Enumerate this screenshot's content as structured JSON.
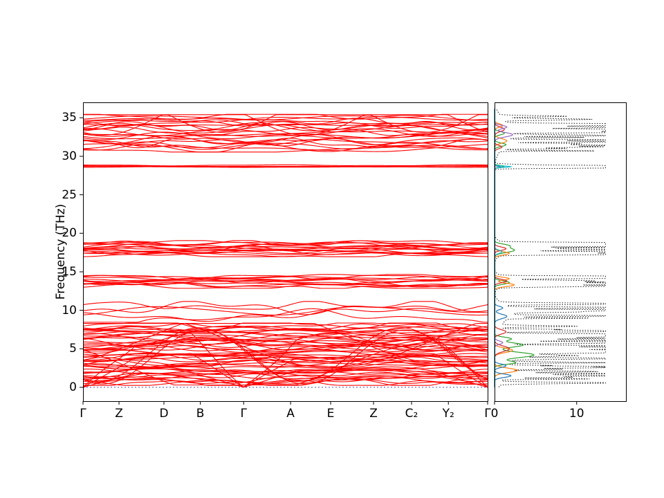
{
  "chart_data": {
    "type": "line",
    "title": "",
    "band_panel": {
      "ylabel": "Frequency (THz)",
      "yticks": [
        0,
        5,
        10,
        15,
        20,
        25,
        30,
        35
      ],
      "ylim": [
        -1.8,
        37.0
      ],
      "xticklabels": [
        "Γ",
        "Z",
        "D",
        "B",
        "Γ",
        "A",
        "E",
        "Z",
        "C₂",
        "Y₂",
        "Γ"
      ],
      "xtickpos": [
        0,
        0.089,
        0.2,
        0.29,
        0.397,
        0.513,
        0.612,
        0.718,
        0.812,
        0.903,
        1.0
      ],
      "band_color": "#ff0000",
      "zero_line_color": "#3333bb",
      "gamma_xpos": [
        0,
        0.397,
        1.0
      ],
      "band_regions": [
        {
          "fmin": 0.4,
          "fmax": 8.2,
          "count": 52,
          "wiggle": 0.5,
          "acoustic": 3,
          "crossing": 5
        },
        {
          "fmin": 8.6,
          "fmax": 11.0,
          "count": 5,
          "wiggle": 0.8,
          "acoustic": 0,
          "crossing": 0
        },
        {
          "fmin": 13.0,
          "fmax": 14.5,
          "count": 12,
          "wiggle": 0.3,
          "acoustic": 0,
          "crossing": 0
        },
        {
          "fmin": 17.1,
          "fmax": 18.9,
          "count": 16,
          "wiggle": 0.35,
          "acoustic": 0,
          "crossing": 0
        },
        {
          "fmin": 28.5,
          "fmax": 28.9,
          "count": 4,
          "wiggle": 0.07,
          "acoustic": 0,
          "crossing": 0
        },
        {
          "fmin": 30.7,
          "fmax": 35.3,
          "count": 24,
          "wiggle": 0.5,
          "acoustic": 0,
          "crossing": 2
        }
      ]
    },
    "dos_panel": {
      "xticks": [
        0,
        10
      ],
      "xlim": [
        0,
        16
      ],
      "total_color": "#000000",
      "total_style": "dotted",
      "total_max": 13.5,
      "partials": [
        {
          "color": "#2ca02c",
          "peaks": [
            [
              4.2,
              4.8,
              0.5
            ],
            [
              5.5,
              3.5,
              0.4
            ],
            [
              3.2,
              2.5,
              0.3
            ],
            [
              6.3,
              2.0,
              0.3
            ],
            [
              13.6,
              1.8,
              0.3
            ],
            [
              17.8,
              2.4,
              0.4
            ],
            [
              18.4,
              1.6,
              0.3
            ],
            [
              28.7,
              1.2,
              0.15
            ],
            [
              31.5,
              1.4,
              0.3
            ],
            [
              33.0,
              1.2,
              0.3
            ]
          ]
        },
        {
          "color": "#ff7f0e",
          "peaks": [
            [
              2.2,
              2.8,
              0.4
            ],
            [
              4.8,
              2.2,
              0.4
            ],
            [
              13.3,
              2.4,
              0.3
            ],
            [
              14.1,
              1.8,
              0.25
            ],
            [
              17.4,
              1.8,
              0.3
            ],
            [
              32.0,
              1.5,
              0.4
            ],
            [
              34.0,
              1.0,
              0.3
            ]
          ]
        },
        {
          "color": "#1f77b4",
          "peaks": [
            [
              1.5,
              2.0,
              0.3
            ],
            [
              2.8,
              1.4,
              0.3
            ],
            [
              9.2,
              1.5,
              0.4
            ],
            [
              10.3,
              1.0,
              0.3
            ],
            [
              28.6,
              0.8,
              0.12
            ]
          ]
        },
        {
          "color": "#d62728",
          "peaks": [
            [
              5.0,
              1.8,
              0.5
            ],
            [
              7.2,
              1.4,
              0.4
            ],
            [
              13.8,
              1.5,
              0.3
            ],
            [
              18.0,
              1.4,
              0.3
            ],
            [
              33.5,
              1.2,
              0.4
            ],
            [
              31.2,
              0.9,
              0.3
            ]
          ]
        },
        {
          "color": "#9467bd",
          "peaks": [
            [
              32.8,
              2.2,
              0.4
            ],
            [
              33.8,
              1.5,
              0.3
            ],
            [
              5.8,
              1.0,
              0.3
            ]
          ]
        },
        {
          "color": "#17becf",
          "peaks": [
            [
              28.65,
              2.0,
              0.12
            ],
            [
              17.6,
              0.9,
              0.3
            ]
          ]
        }
      ]
    }
  }
}
